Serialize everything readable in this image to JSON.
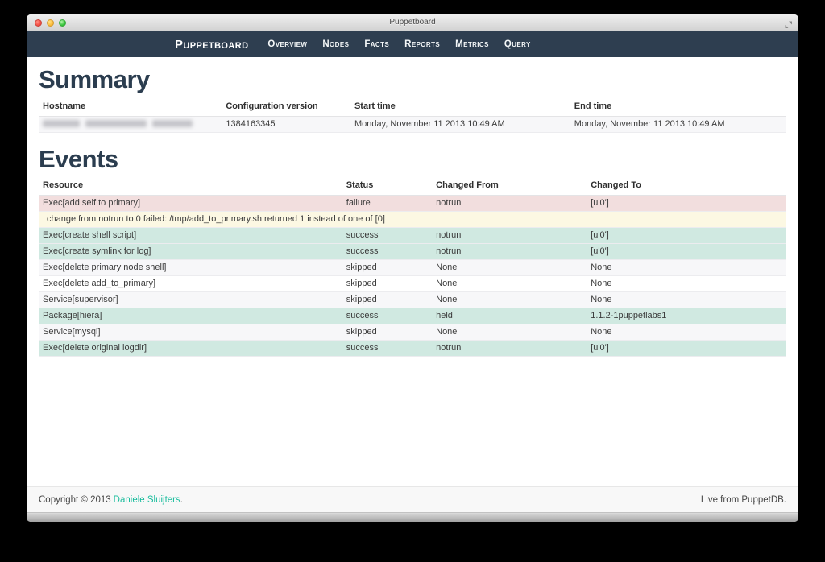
{
  "window": {
    "title": "Puppetboard"
  },
  "navbar": {
    "brand": "Puppetboard",
    "items": [
      {
        "label": "Overview"
      },
      {
        "label": "Nodes"
      },
      {
        "label": "Facts"
      },
      {
        "label": "Reports"
      },
      {
        "label": "Metrics"
      },
      {
        "label": "Query"
      }
    ]
  },
  "summary": {
    "heading": "Summary",
    "columns": [
      "Hostname",
      "Configuration version",
      "Start time",
      "End time"
    ],
    "row": {
      "hostname_redacted": true,
      "configuration_version": "1384163345",
      "start_time": "Monday, November 11 2013 10:49 AM",
      "end_time": "Monday, November 11 2013 10:49 AM"
    }
  },
  "events": {
    "heading": "Events",
    "columns": [
      "Resource",
      "Status",
      "Changed From",
      "Changed To"
    ],
    "rows": [
      {
        "type": "event",
        "status_class": "failure",
        "resource": "Exec[add self to primary]",
        "status": "failure",
        "changed_from": "notrun",
        "changed_to": "[u'0']"
      },
      {
        "type": "message",
        "status_class": "warning",
        "message": "change from notrun to 0 failed: /tmp/add_to_primary.sh returned 1 instead of one of [0]"
      },
      {
        "type": "event",
        "status_class": "success",
        "resource": "Exec[create shell script]",
        "status": "success",
        "changed_from": "notrun",
        "changed_to": "[u'0']"
      },
      {
        "type": "event",
        "status_class": "success",
        "resource": "Exec[create symlink for log]",
        "status": "success",
        "changed_from": "notrun",
        "changed_to": "[u'0']"
      },
      {
        "type": "event",
        "status_class": "",
        "resource": "Exec[delete primary node shell]",
        "status": "skipped",
        "changed_from": "None",
        "changed_to": "None"
      },
      {
        "type": "event",
        "status_class": "",
        "resource": "Exec[delete add_to_primary]",
        "status": "skipped",
        "changed_from": "None",
        "changed_to": "None"
      },
      {
        "type": "event",
        "status_class": "",
        "resource": "Service[supervisor]",
        "status": "skipped",
        "changed_from": "None",
        "changed_to": "None"
      },
      {
        "type": "event",
        "status_class": "success",
        "resource": "Package[hiera]",
        "status": "success",
        "changed_from": "held",
        "changed_to": "1.1.2-1puppetlabs1"
      },
      {
        "type": "event",
        "status_class": "",
        "resource": "Service[mysql]",
        "status": "skipped",
        "changed_from": "None",
        "changed_to": "None"
      },
      {
        "type": "event",
        "status_class": "success",
        "resource": "Exec[delete original logdir]",
        "status": "success",
        "changed_from": "notrun",
        "changed_to": "[u'0']"
      }
    ]
  },
  "footer": {
    "copyright_prefix": "Copyright © 2013",
    "copyright_link": "Daniele Sluijters",
    "copyright_suffix": ".",
    "right_text": "Live from PuppetDB."
  },
  "colors": {
    "navbar_bg": "#2e3e50",
    "heading": "#2b3d4f",
    "failure_row_bg": "#f2dede",
    "warning_row_bg": "#fcf8e3",
    "success_row_bg": "#d0e9e1",
    "stripe_row_bg": "#f7f7f9",
    "link": "#18bc9c",
    "footer_bg": "#f8f8f8"
  }
}
